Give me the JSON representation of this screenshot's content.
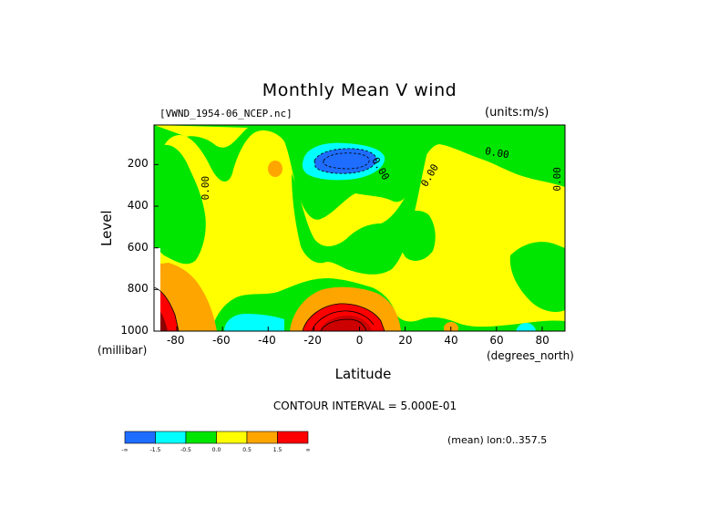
{
  "chart_data": {
    "type": "heatmap",
    "title": "Monthly Mean V wind",
    "dataset": "[VWND_1954-06_NCEP.nc]",
    "units": "(units:m/s)",
    "xlabel": "Latitude",
    "x_units": "(degrees_north)",
    "ylabel": "Level",
    "y_units": "(millibar)",
    "x_ticks": [
      "-80",
      "-60",
      "-40",
      "-20",
      "0",
      "20",
      "40",
      "60",
      "80"
    ],
    "y_ticks": [
      "200",
      "400",
      "600",
      "800",
      "1000"
    ],
    "xlim": [
      -90,
      90
    ],
    "ylim": [
      1000,
      10
    ],
    "contour_interval": "CONTOUR INTERVAL = 5.000E-01",
    "contour_labels": [
      "0.00",
      "0.00",
      "0.00",
      "0.00",
      "0.00"
    ],
    "colorbar": {
      "labels": [
        "-∞",
        "-1.5",
        "-0.5",
        "0.0",
        "0.5",
        "1.5",
        "∞"
      ],
      "colors": [
        "#1e6dff",
        "#00ffff",
        "#00e600",
        "#ffff00",
        "#ffa500",
        "#ff0000"
      ]
    },
    "footer": "(mean) lon:0..357.5"
  }
}
